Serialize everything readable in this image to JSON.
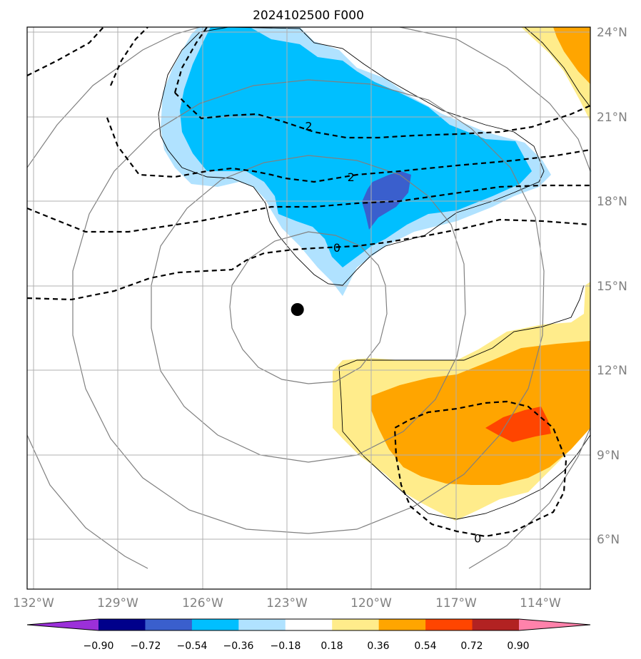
{
  "chart_data": {
    "type": "heatmap",
    "title": "2024102500 F000",
    "xlabel": "",
    "ylabel": "",
    "x_ticks": [
      "132°W",
      "129°W",
      "126°W",
      "123°W",
      "120°W",
      "117°W",
      "114°W"
    ],
    "y_ticks": [
      "24°N",
      "21°N",
      "18°N",
      "15°N",
      "12°N",
      "9°N",
      "6°N"
    ],
    "xlim": [
      -131.9,
      -111.9
    ],
    "ylim": [
      4.3,
      24.2
    ],
    "grid": true,
    "colorbar": {
      "orientation": "horizontal",
      "extend": "both",
      "levels": [
        "−0.90",
        "−0.72",
        "−0.54",
        "−0.36",
        "−0.18",
        "0.18",
        "0.36",
        "0.54",
        "0.72",
        "0.90"
      ],
      "colors": [
        "#9b30d9",
        "#00008b",
        "#3a5fcd",
        "#00bfff",
        "#b0e2ff",
        "#ffffff",
        "#ffec8b",
        "#ffa500",
        "#ff4500",
        "#b22222",
        "#ff82ab"
      ]
    },
    "center_marker": {
      "lon": -122.3,
      "lat": 14.2
    },
    "contour_labels": [
      {
        "text": "2",
        "lon": -121.9,
        "lat": 20.7
      },
      {
        "text": "2",
        "lon": -120.4,
        "lat": 18.9
      },
      {
        "text": "0",
        "lon": -120.9,
        "lat": 16.4
      },
      {
        "text": "0",
        "lon": -115.9,
        "lat": 6.1
      }
    ],
    "filled_regions": [
      {
        "level": "-0.36 to -0.18",
        "color": "#b0e2ff"
      },
      {
        "level": "-0.54 to -0.36",
        "color": "#00bfff"
      },
      {
        "level": "-0.72 to -0.54",
        "color": "#3a5fcd"
      },
      {
        "level": "0.18 to 0.36",
        "color": "#ffec8b"
      },
      {
        "level": "0.36 to 0.54",
        "color": "#ffa500"
      },
      {
        "level": "0.54 to 0.72",
        "color": "#ff4500"
      }
    ]
  }
}
